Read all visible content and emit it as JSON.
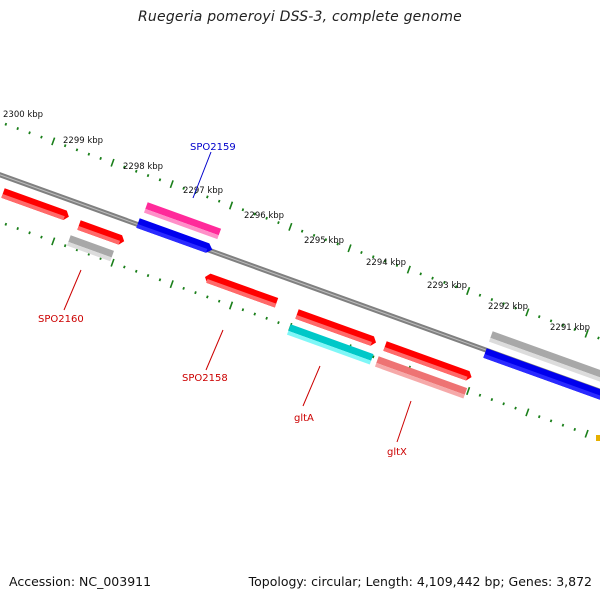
{
  "title": "Ruegeria pomeroyi DSS-3, complete genome",
  "accession_label": "Accession: NC_003911",
  "summary_label": "Topology: circular; Length: 4,109,442 bp; Genes: 3,872",
  "colors": {
    "backbone": "#808080",
    "tick": "#1a7f1a",
    "red": "#ff0000",
    "pink": "#ff2a9a",
    "blue": "#0000ee",
    "gray": "#bdbdbd",
    "cyan": "#00eaea",
    "salmon": "#ee7373",
    "label_red": "#cc0000",
    "label_blue": "#0000cc"
  },
  "ruler": [
    {
      "kbp": 2300,
      "label": "2300 kbp"
    },
    {
      "kbp": 2299,
      "label": "2299 kbp"
    },
    {
      "kbp": 2298,
      "label": "2298 kbp"
    },
    {
      "kbp": 2297,
      "label": "2297 kbp"
    },
    {
      "kbp": 2296,
      "label": "2296 kbp"
    },
    {
      "kbp": 2295,
      "label": "2295 kbp"
    },
    {
      "kbp": 2294,
      "label": "2294 kbp"
    },
    {
      "kbp": 2293,
      "label": "2293 kbp"
    },
    {
      "kbp": 2292,
      "label": "2292 kbp"
    },
    {
      "kbp": 2291,
      "label": "2291 kbp"
    }
  ],
  "gene_labels": [
    {
      "id": "SPO2159",
      "text": "SPO2159",
      "color_key": "label_blue"
    },
    {
      "id": "SPO2160",
      "text": "SPO2160",
      "color_key": "label_red"
    },
    {
      "id": "SPO2158",
      "text": "SPO2158",
      "color_key": "label_red"
    },
    {
      "id": "gltA",
      "text": "gltA",
      "color_key": "label_red"
    },
    {
      "id": "gltX",
      "text": "gltX",
      "color_key": "label_red"
    }
  ]
}
